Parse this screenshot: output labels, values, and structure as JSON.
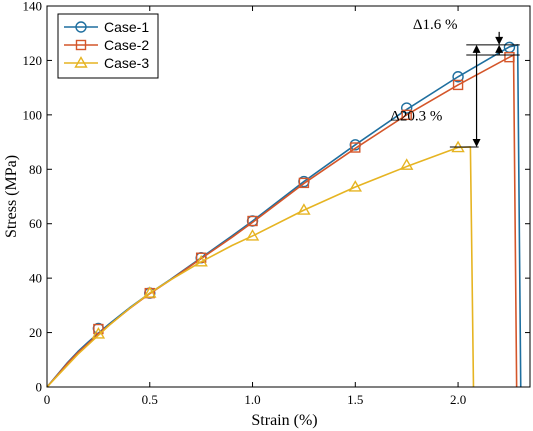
{
  "chart_data": {
    "type": "line",
    "title": "",
    "xlabel": "Strain (%)",
    "ylabel": "Stress (MPa)",
    "xlim": [
      0,
      2.35
    ],
    "ylim": [
      0,
      140
    ],
    "xticks": [
      0,
      0.5,
      1.0,
      1.5,
      2.0
    ],
    "xtick_labels": [
      "0",
      "0.5",
      "1.0",
      "1.5",
      "2.0"
    ],
    "yticks": [
      0,
      20,
      40,
      60,
      80,
      100,
      120,
      140
    ],
    "ytick_labels": [
      "0",
      "20",
      "40",
      "60",
      "80",
      "100",
      "120",
      "140"
    ],
    "grid": false,
    "legend_position": "top-left",
    "series": [
      {
        "name": "Case-1",
        "color": "#1f6f9f",
        "marker": "circle",
        "x": [
          0,
          0.05,
          0.1,
          0.15,
          0.2,
          0.25,
          0.3,
          0.4,
          0.5,
          0.6,
          0.75,
          0.9,
          1.0,
          1.25,
          1.5,
          1.75,
          2.0,
          2.25,
          2.29,
          2.305
        ],
        "y": [
          0,
          4.5,
          9,
          13,
          16.5,
          19.8,
          23,
          29,
          34.5,
          39.5,
          47.5,
          55.5,
          61,
          75.5,
          89,
          102,
          114,
          125,
          125.7,
          0
        ],
        "marker_x": [
          0.25,
          0.5,
          0.75,
          1.0,
          1.25,
          1.5,
          1.75,
          2.0,
          2.25
        ],
        "marker_y": [
          21.5,
          34.5,
          47.5,
          61,
          75.5,
          89,
          102.5,
          114,
          124.8
        ]
      },
      {
        "name": "Case-2",
        "color": "#d4562a",
        "marker": "square",
        "x": [
          0,
          0.05,
          0.1,
          0.15,
          0.2,
          0.25,
          0.3,
          0.4,
          0.5,
          0.6,
          0.75,
          0.9,
          1.0,
          1.25,
          1.5,
          1.75,
          2.0,
          2.25,
          2.27,
          2.285
        ],
        "y": [
          0,
          4.3,
          8.7,
          12.6,
          16,
          19.5,
          22.6,
          28.7,
          34.3,
          39.3,
          47.2,
          55,
          60.5,
          74.8,
          87.7,
          100,
          111,
          121.2,
          122,
          0
        ],
        "marker_x": [
          0.25,
          0.5,
          0.75,
          1.0,
          1.25,
          1.5,
          1.75,
          2.0,
          2.25
        ],
        "marker_y": [
          21.3,
          34.5,
          47.5,
          61,
          75,
          88,
          100,
          111,
          121.2
        ]
      },
      {
        "name": "Case-3",
        "color": "#e6b422",
        "marker": "triangle",
        "x": [
          0,
          0.05,
          0.1,
          0.15,
          0.2,
          0.25,
          0.3,
          0.4,
          0.5,
          0.6,
          0.75,
          0.9,
          1.0,
          1.25,
          1.5,
          1.75,
          2.0,
          2.06,
          2.065,
          2.075
        ],
        "y": [
          0,
          4,
          8,
          12,
          15.5,
          19,
          22.5,
          28.8,
          34.5,
          39.3,
          46,
          52,
          55.5,
          65,
          73.5,
          81,
          88,
          88.2,
          60,
          0
        ],
        "marker_x": [
          0.25,
          0.5,
          0.75,
          1.0,
          1.25,
          1.5,
          1.75,
          2.0
        ],
        "marker_y": [
          19.5,
          34.5,
          46,
          55.5,
          65,
          73.5,
          81.5,
          88
        ]
      }
    ],
    "annotations": [
      {
        "text": "Δ1.6 %",
        "x": 1.78,
        "y": 131.5
      },
      {
        "text": "Δ20.3 %",
        "x": 1.67,
        "y": 98
      }
    ],
    "arrows": [
      {
        "x": 2.09,
        "y_from": 125.7,
        "y_to": 88.2,
        "style": "double"
      },
      {
        "x": 2.2,
        "y_from": 122,
        "y_to": 125.7,
        "style": "up"
      },
      {
        "x": 2.2,
        "y_from": 130.5,
        "y_to": 125.7,
        "style": "down"
      }
    ],
    "ref_lines": [
      {
        "x1": 2.04,
        "x2": 2.3,
        "y": 125.7
      },
      {
        "x1": 2.04,
        "x2": 2.3,
        "y": 122
      },
      {
        "x1": 1.96,
        "x2": 2.1,
        "y": 88.2
      }
    ]
  }
}
